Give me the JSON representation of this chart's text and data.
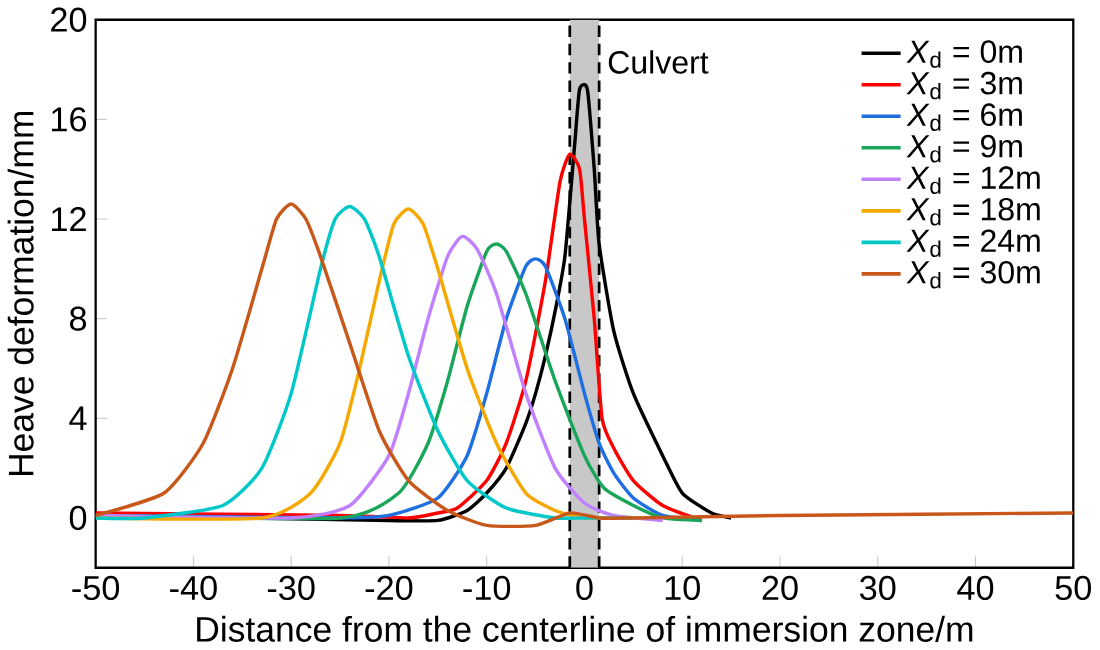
{
  "chart_data": {
    "type": "line",
    "xlabel": "Distance from the centerline of immersion zone/m",
    "ylabel": "Heave deformation/mm",
    "xlim": [
      -50,
      50
    ],
    "xticks": [
      -50,
      -40,
      -30,
      -20,
      -10,
      0,
      10,
      20,
      30,
      40,
      50
    ],
    "ylim": [
      -2,
      20
    ],
    "yticks": [
      0,
      4,
      8,
      12,
      16,
      20
    ],
    "grid": false,
    "legend": "top right",
    "line_style": "solid",
    "marker": "none",
    "bands": [
      {
        "axis": "x",
        "from": -1.5,
        "to": 1.5,
        "label": "Culvert",
        "color": "#c8c8c8"
      }
    ],
    "ref_lines": [
      {
        "axis": "x",
        "value": -1.5,
        "color": "#000000",
        "line_style": "dashed"
      },
      {
        "axis": "x",
        "value": 1.5,
        "color": "#000000",
        "line_style": "dashed"
      }
    ],
    "series": [
      {
        "name": "*X*$_{d}$ = 0m",
        "color": "#000000",
        "x": [
          -50,
          -20,
          -15,
          -12,
          -10,
          -8,
          -6,
          -5,
          -4,
          -3,
          -2,
          -1,
          -0.5,
          0.3,
          1,
          1.5,
          3,
          5,
          8,
          10,
          13,
          15
        ],
        "values": [
          0.1,
          -0.1,
          -0.1,
          0.3,
          1,
          2,
          3.8,
          5,
          6.5,
          8.3,
          10.5,
          15,
          17.2,
          17.2,
          14,
          11,
          7.5,
          5,
          2.5,
          1,
          0.2,
          0
        ]
      },
      {
        "name": "*X*$_{d}$ = 3m",
        "color": "#ff0000",
        "x": [
          -50,
          -25,
          -18,
          -15,
          -13,
          -10,
          -8,
          -6,
          -4,
          -2.5,
          -1.5,
          -0.5,
          0,
          1,
          1.8,
          3,
          5,
          8,
          12
        ],
        "values": [
          0.2,
          0.1,
          0,
          0.2,
          0.4,
          1.5,
          3,
          5.5,
          9.5,
          13.5,
          14.6,
          14,
          12,
          8,
          4,
          2.8,
          1.5,
          0.5,
          -0.1
        ]
      },
      {
        "name": "*X*$_{d}$ = 6m",
        "color": "#1f6fe0",
        "x": [
          -50,
          -25,
          -20,
          -15,
          -12,
          -10,
          -8,
          -6,
          -5,
          -4,
          -2,
          0,
          1.5,
          3,
          5,
          8,
          12
        ],
        "values": [
          0.1,
          0,
          0.1,
          0.8,
          2.5,
          5,
          8,
          10.1,
          10.4,
          10.1,
          8,
          5,
          3,
          1.8,
          0.8,
          0.1,
          -0.1
        ]
      },
      {
        "name": "*X*$_{d}$ = 9m",
        "color": "#1aa65a",
        "x": [
          -50,
          -25,
          -19,
          -16,
          -14,
          -12,
          -10,
          -9,
          -8,
          -6,
          -3,
          0,
          2,
          5,
          8,
          12
        ],
        "values": [
          0.1,
          0,
          1,
          3,
          5.5,
          8.5,
          10.7,
          11,
          10.7,
          9,
          5.5,
          2.5,
          1.2,
          0.5,
          0,
          -0.1
        ]
      },
      {
        "name": "*X*$_{d}$ = 12m",
        "color": "#c080ff",
        "x": [
          -50,
          -30,
          -24,
          -20,
          -18,
          -16,
          -14,
          -12.5,
          -11,
          -9,
          -6,
          -3,
          0,
          3,
          8
        ],
        "values": [
          0.1,
          0,
          0.5,
          2.5,
          5,
          8,
          10.5,
          11.3,
          10.8,
          9,
          5,
          2,
          0.6,
          0.1,
          -0.1
        ]
      },
      {
        "name": "*X*$_{d}$ = 18m",
        "color": "#f5a800",
        "x": [
          -50,
          -33,
          -28,
          -25,
          -23,
          -21,
          -19.5,
          -18,
          -16.5,
          -15,
          -12,
          -9,
          -6,
          -3,
          0,
          5
        ],
        "values": [
          0,
          0,
          1,
          3,
          6,
          9.5,
          11.8,
          12.4,
          11.8,
          10,
          6,
          3,
          1,
          0.3,
          0,
          0
        ]
      },
      {
        "name": "*X*$_{d}$ = 24m",
        "color": "#00c8c8",
        "x": [
          -50,
          -45,
          -37,
          -33,
          -30,
          -27,
          -25.5,
          -24,
          -22.5,
          -21,
          -18,
          -15,
          -12,
          -8,
          -3,
          0,
          5
        ],
        "values": [
          0,
          0,
          0.5,
          2,
          5,
          10,
          12,
          12.5,
          12,
          10.5,
          6.5,
          3.5,
          1.5,
          0.4,
          0,
          0,
          0
        ]
      },
      {
        "name": "*X*$_{d}$ = 30m",
        "color": "#c8581a",
        "x": [
          -50,
          -43,
          -39,
          -36,
          -33,
          -31.5,
          -30,
          -28.5,
          -27,
          -24,
          -21,
          -18,
          -14,
          -10,
          -5,
          -1.5,
          1.5,
          5,
          20,
          50
        ],
        "values": [
          0.1,
          1,
          3,
          6,
          10,
          12,
          12.6,
          12,
          10.5,
          7,
          3.5,
          1.5,
          0.3,
          -0.3,
          -0.3,
          0.2,
          0,
          0,
          0.1,
          0.2
        ]
      }
    ]
  }
}
